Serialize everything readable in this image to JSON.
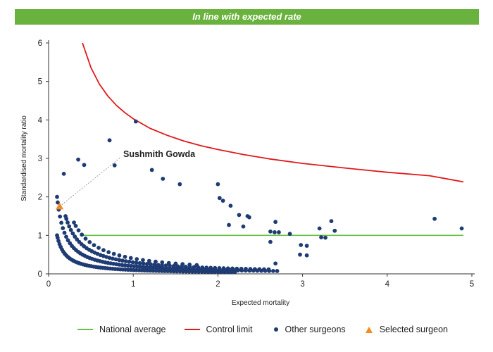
{
  "banner": {
    "text": "In line with expected rate"
  },
  "colors": {
    "banner": "#6ab23e",
    "national_average": "#6abf45",
    "control_limit": "#e0191c",
    "other_surgeons": "#1f3b73",
    "selected_surgeon": "#f28c1f"
  },
  "chart_data": {
    "type": "scatter",
    "xlabel": "Expected mortality",
    "ylabel": "Standardised mortality ratio",
    "xlim": [
      0,
      5
    ],
    "ylim": [
      0,
      6
    ],
    "x_ticks": [
      "0",
      "1",
      "2",
      "3",
      "4",
      "5"
    ],
    "y_ticks": [
      "0",
      "1",
      "2",
      "3",
      "4",
      "5",
      "6"
    ],
    "grid": false,
    "legend_position": "bottom",
    "annotation": {
      "text": "Sushmith Gowda",
      "x": 0.13,
      "y": 1.75
    },
    "series": [
      {
        "name": "National average",
        "kind": "line",
        "x": [
          0.4,
          4.9
        ],
        "y": [
          1,
          1
        ]
      },
      {
        "name": "Control limit",
        "kind": "line",
        "x": [
          0.4,
          0.5,
          0.6,
          0.7,
          0.8,
          0.9,
          1.0,
          1.2,
          1.4,
          1.6,
          1.8,
          2.0,
          2.3,
          2.6,
          3.0,
          3.5,
          4.0,
          4.5,
          4.9
        ],
        "y": [
          6.0,
          5.36,
          4.93,
          4.62,
          4.38,
          4.19,
          4.03,
          3.78,
          3.6,
          3.45,
          3.33,
          3.23,
          3.1,
          2.99,
          2.87,
          2.75,
          2.64,
          2.55,
          2.39
        ]
      },
      {
        "name": "Other surgeons",
        "kind": "scatter",
        "curves": [
          {
            "numerator": 0.1,
            "x_min": 0.1,
            "x_max": 2.2,
            "count": 72
          },
          {
            "numerator": 0.2,
            "x_min": 0.1,
            "x_max": 2.7,
            "count": 75
          },
          {
            "numerator": 0.3,
            "x_min": 0.2,
            "x_max": 2.6,
            "count": 60
          },
          {
            "numerator": 0.4,
            "x_min": 0.3,
            "x_max": 1.75,
            "count": 24
          }
        ],
        "x": [
          0.18,
          0.35,
          0.42,
          0.72,
          1.03,
          0.78,
          1.22,
          1.35,
          1.55,
          2.0,
          2.02,
          2.06,
          2.15,
          2.13,
          2.25,
          2.3,
          2.35,
          2.37,
          2.62,
          2.67,
          2.68,
          2.72,
          2.85,
          2.68,
          2.98,
          3.05,
          3.2,
          3.22,
          3.27,
          3.34,
          3.38,
          4.56,
          4.88,
          2.62,
          2.97,
          3.05
        ],
        "y": [
          2.6,
          2.97,
          2.83,
          3.47,
          3.96,
          2.82,
          2.7,
          2.47,
          2.33,
          2.33,
          1.97,
          1.9,
          1.77,
          1.27,
          1.53,
          1.23,
          1.5,
          1.47,
          1.1,
          1.08,
          1.35,
          1.08,
          1.04,
          0.27,
          0.75,
          0.73,
          1.18,
          0.95,
          0.94,
          1.37,
          1.12,
          1.43,
          1.18,
          0.83,
          0.5,
          0.48
        ]
      },
      {
        "name": "Selected surgeon",
        "kind": "scatter",
        "x": [
          0.13
        ],
        "y": [
          1.75
        ]
      }
    ]
  }
}
